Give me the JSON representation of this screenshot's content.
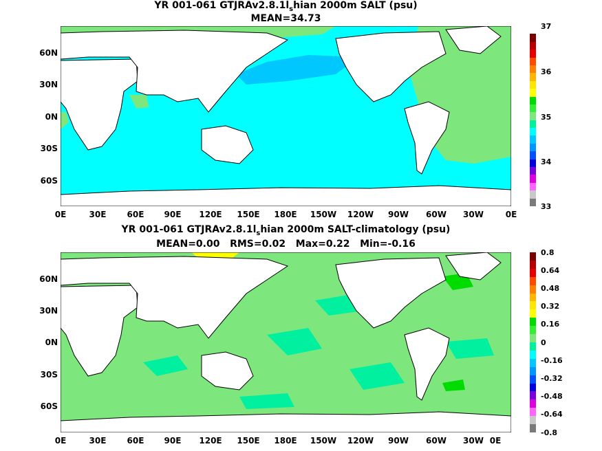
{
  "panels": [
    {
      "title_pre": "YR 001-061 GTJRAv2.8.1l",
      "title_sub": "s",
      "title_post": "hian 2000m SALT (psu)",
      "subtitle": "MEAN=34.73",
      "colorbar": {
        "labels": [
          "37",
          "36",
          "35",
          "34",
          "33"
        ],
        "colors": [
          "#ffffff",
          "#7a0000",
          "#b40000",
          "#e60000",
          "#ff4b00",
          "#ff7f00",
          "#ffb400",
          "#ffe600",
          "#ffff00",
          "#00dc00",
          "#33ee33",
          "#7de67d",
          "#00f0a0",
          "#00ffff",
          "#00c8ff",
          "#0096ff",
          "#0050ff",
          "#0000dc",
          "#7800dc",
          "#dc00dc",
          "#ff64ff",
          "#c8c8c8",
          "#7a7a7a"
        ]
      }
    },
    {
      "title_pre": "YR 001-061 GTJRAv2.8.1l",
      "title_sub": "s",
      "title_post": "hian 2000m SALT-climatology (psu)",
      "subtitle": "MEAN=0.00   RMS=0.02   Max=0.22   Min=-0.16",
      "colorbar": {
        "labels": [
          "0.8",
          "0.64",
          "0.48",
          "0.32",
          "0.16",
          "0",
          "-0.16",
          "-0.32",
          "-0.48",
          "-0.64",
          "-0.8"
        ],
        "colors": [
          "#7a0000",
          "#b40000",
          "#e60000",
          "#ff4b00",
          "#ff7f00",
          "#ffb400",
          "#ffe600",
          "#ffff00",
          "#00dc00",
          "#33ee33",
          "#7de67d",
          "#00f0a0",
          "#00ffff",
          "#00c8ff",
          "#0096ff",
          "#0050ff",
          "#0000dc",
          "#7800dc",
          "#dc00dc",
          "#ff64ff",
          "#c8c8c8",
          "#7a7a7a"
        ]
      }
    }
  ],
  "lat_labels": [
    "60N",
    "30N",
    "0N",
    "30S",
    "60S"
  ],
  "lon_labels": [
    "0E",
    "30E",
    "60E",
    "90E",
    "120E",
    "150E",
    "180E",
    "150W",
    "120W",
    "90W",
    "60W",
    "30W",
    "0E"
  ],
  "colors": {
    "ocean_top": "#00ffff",
    "ocean_top_north_pacific": "#00c8ff",
    "ocean_top_atlantic": "#7de67d",
    "ocean_bottom": "#7de67d",
    "ocean_bottom_patch": "#00f0a0",
    "land": "#ffffff",
    "coast": "#000000"
  }
}
